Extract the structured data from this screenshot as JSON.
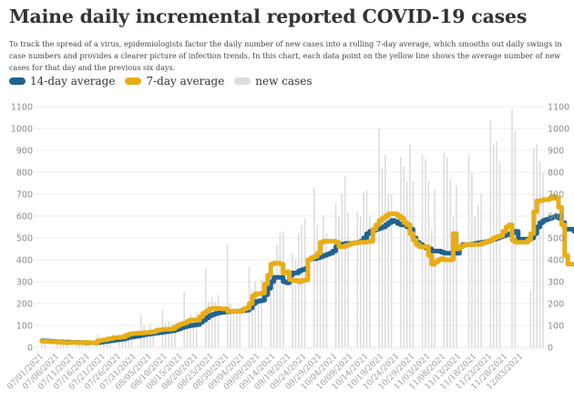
{
  "title": "Maine daily incremental reported COVID-19 cases",
  "description": "To track the spread of a virus, epidemiologists factor the daily number of new cases into a rolling 7-day average, which smooths out daily swings in case numbers and provides a clearer picture of infection trends. In this chart, each data point on the yellow line shows the average number of new cases for that day and the previous six days.",
  "legend": [
    {
      "label": "14-day average",
      "color": "#1f6391"
    },
    {
      "label": "7-day average",
      "color": "#e8ad16"
    },
    {
      "label": "new cases",
      "color": "#dddddd"
    }
  ],
  "chart_data": {
    "type": "line",
    "title": "Maine daily incremental reported COVID-19 cases",
    "xlabel": "",
    "ylabel": "",
    "ylim": [
      0,
      1100
    ],
    "yticks": [
      0,
      100,
      200,
      300,
      400,
      500,
      600,
      700,
      800,
      900,
      1000,
      1100
    ],
    "grid": true,
    "legend_position": "top-left",
    "start_date": "07/01/2021",
    "end_date": "12/03/2021",
    "x_tick_labels": [
      "07/01/2021",
      "07/06/2021",
      "07/11/2021",
      "07/16/2021",
      "07/21/2021",
      "07/26/2021",
      "07/31/2021",
      "08/05/2021",
      "08/10/2021",
      "08/15/2021",
      "08/20/2021",
      "08/25/2021",
      "08/30/2021",
      "09/04/2021",
      "09/09/2021",
      "09/14/2021",
      "09/19/2021",
      "09/24/2021",
      "09/29/2021",
      "10/04/2021",
      "10/09/2021",
      "10/14/2021",
      "10/19/2021",
      "10/24/2021",
      "10/29/2021",
      "11/03/2021",
      "11/08/2021",
      "11/13/2021",
      "11/18/2021",
      "11/23/2021",
      "11/28/2021",
      "12/03/2021"
    ],
    "series": [
      {
        "name": "new cases",
        "type": "bar",
        "color": "#dddddd",
        "values": [
          30,
          25,
          0,
          0,
          0,
          20,
          30,
          28,
          20,
          0,
          0,
          25,
          30,
          28,
          30,
          20,
          0,
          0,
          60,
          40,
          45,
          50,
          35,
          0,
          0,
          60,
          55,
          50,
          65,
          60,
          0,
          0,
          150,
          100,
          65,
          110,
          70,
          0,
          0,
          170,
          110,
          120,
          110,
          100,
          0,
          0,
          255,
          120,
          150,
          140,
          160,
          0,
          0,
          360,
          210,
          230,
          210,
          240,
          0,
          0,
          470,
          200,
          180,
          160,
          180,
          0,
          0,
          370,
          260,
          300,
          230,
          310,
          0,
          0,
          360,
          340,
          470,
          520,
          530,
          0,
          0,
          430,
          400,
          520,
          560,
          590,
          0,
          0,
          730,
          560,
          460,
          600,
          520,
          0,
          0,
          660,
          600,
          700,
          780,
          620,
          0,
          0,
          620,
          600,
          710,
          720,
          600,
          0,
          0,
          1000,
          820,
          880,
          700,
          700,
          0,
          0,
          870,
          830,
          760,
          930,
          760,
          0,
          0,
          880,
          860,
          760,
          540,
          720,
          0,
          0,
          890,
          870,
          770,
          600,
          740,
          0,
          0,
          0,
          880,
          800,
          600,
          650,
          700,
          0,
          0,
          1040,
          930,
          940,
          850,
          0,
          0,
          0,
          1090,
          990,
          0,
          0,
          0,
          0,
          260,
          910,
          930,
          850,
          800
        ]
      },
      {
        "name": "7-day average",
        "type": "line",
        "color": "#e8ad16",
        "values": [
          28,
          27,
          26,
          25,
          25,
          24,
          23,
          22,
          21,
          22,
          23,
          22,
          21,
          22,
          23,
          22,
          21,
          20,
          30,
          33,
          34,
          38,
          40,
          44,
          45,
          46,
          48,
          55,
          60,
          63,
          64,
          65,
          66,
          67,
          68,
          70,
          72,
          78,
          80,
          82,
          82,
          83,
          85,
          95,
          102,
          108,
          112,
          120,
          125,
          125,
          124,
          140,
          155,
          165,
          175,
          178,
          178,
          178,
          176,
          176,
          165,
          165,
          165,
          165,
          165,
          175,
          180,
          200,
          235,
          245,
          245,
          248,
          290,
          330,
          380,
          385,
          385,
          380,
          340,
          345,
          310,
          305,
          305,
          300,
          305,
          308,
          400,
          410,
          415,
          430,
          480,
          485,
          485,
          485,
          485,
          480,
          460,
          460,
          465,
          470,
          475,
          478,
          480,
          480,
          480,
          482,
          485,
          540,
          560,
          580,
          590,
          600,
          610,
          610,
          610,
          600,
          590,
          570,
          560,
          520,
          490,
          470,
          460,
          460,
          460,
          420,
          380,
          390,
          400,
          405,
          400,
          400,
          400,
          520,
          450,
          460,
          465,
          470,
          470,
          470,
          470,
          470,
          475,
          480,
          485,
          490,
          500,
          505,
          510,
          530,
          550,
          560,
          490,
          480,
          480,
          480,
          480,
          490,
          520,
          620,
          670,
          670,
          675,
          675,
          680,
          690,
          680,
          640,
          560,
          420,
          380,
          380,
          380,
          410,
          420,
          400,
          385,
          380,
          450,
          540
        ]
      },
      {
        "name": "14-day average",
        "type": "line",
        "color": "#1f6391",
        "values": [
          30,
          29,
          28,
          27,
          26,
          25,
          25,
          24,
          24,
          23,
          23,
          23,
          22,
          22,
          21,
          21,
          21,
          20,
          22,
          24,
          26,
          28,
          30,
          32,
          34,
          36,
          38,
          42,
          46,
          48,
          50,
          52,
          55,
          58,
          60,
          62,
          64,
          66,
          68,
          70,
          72,
          74,
          76,
          80,
          85,
          90,
          94,
          98,
          100,
          102,
          104,
          115,
          125,
          135,
          145,
          150,
          155,
          158,
          160,
          162,
          163,
          164,
          165,
          165,
          166,
          168,
          170,
          180,
          200,
          210,
          212,
          215,
          240,
          270,
          300,
          320,
          320,
          320,
          300,
          295,
          330,
          340,
          340,
          350,
          355,
          360,
          400,
          405,
          405,
          410,
          415,
          420,
          425,
          430,
          440,
          460,
          470,
          472,
          475,
          475,
          476,
          478,
          480,
          485,
          500,
          520,
          530,
          535,
          540,
          545,
          550,
          560,
          570,
          580,
          575,
          565,
          560,
          560,
          550,
          540,
          500,
          480,
          470,
          460,
          455,
          450,
          440,
          440,
          440,
          435,
          430,
          430,
          430,
          430,
          430,
          460,
          470,
          470,
          470,
          472,
          475,
          478,
          480,
          482,
          485,
          490,
          495,
          500,
          505,
          510,
          515,
          520,
          525,
          530,
          490,
          495,
          495,
          495,
          500,
          520,
          550,
          570,
          580,
          585,
          590,
          595,
          600,
          590,
          570,
          540,
          540,
          540,
          530,
          540,
          535,
          530,
          530,
          525,
          520,
          525
        ]
      }
    ]
  }
}
